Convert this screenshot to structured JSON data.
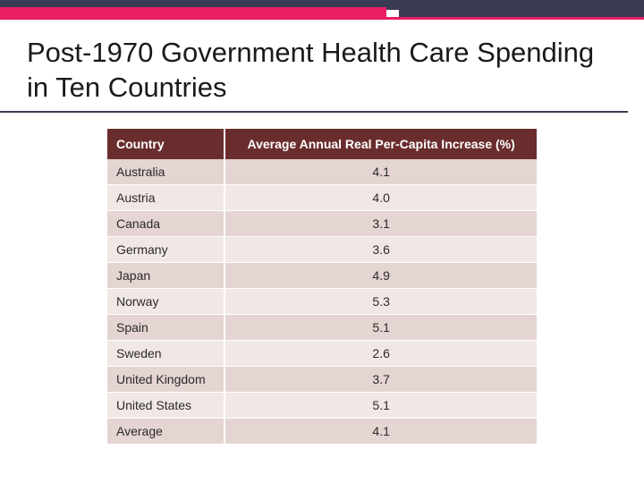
{
  "slide": {
    "title": "Post-1970 Government Health Care Spending in Ten Countries",
    "title_fontsize": 31,
    "title_color": "#1a1a1a"
  },
  "decor": {
    "top_border_color": "#3a3a52",
    "accent_color": "#e91e63"
  },
  "table": {
    "type": "table",
    "header_bg": "#6a2d2d",
    "header_text_color": "#ffffff",
    "row_odd_bg": "#e4d4d2",
    "row_even_bg": "#f1e8e6",
    "cell_text_color": "#2a2a2a",
    "font_size": 14,
    "columns": [
      {
        "label": "Country",
        "align": "left"
      },
      {
        "label": "Average Annual Real Per-Capita Increase (%)",
        "align": "center"
      }
    ],
    "rows": [
      [
        "Australia",
        "4.1"
      ],
      [
        "Austria",
        "4.0"
      ],
      [
        "Canada",
        "3.1"
      ],
      [
        "Germany",
        "3.6"
      ],
      [
        "Japan",
        "4.9"
      ],
      [
        "Norway",
        "5.3"
      ],
      [
        "Spain",
        "5.1"
      ],
      [
        "Sweden",
        "2.6"
      ],
      [
        "United Kingdom",
        "3.7"
      ],
      [
        "United States",
        "5.1"
      ],
      [
        "Average",
        "4.1"
      ]
    ]
  }
}
